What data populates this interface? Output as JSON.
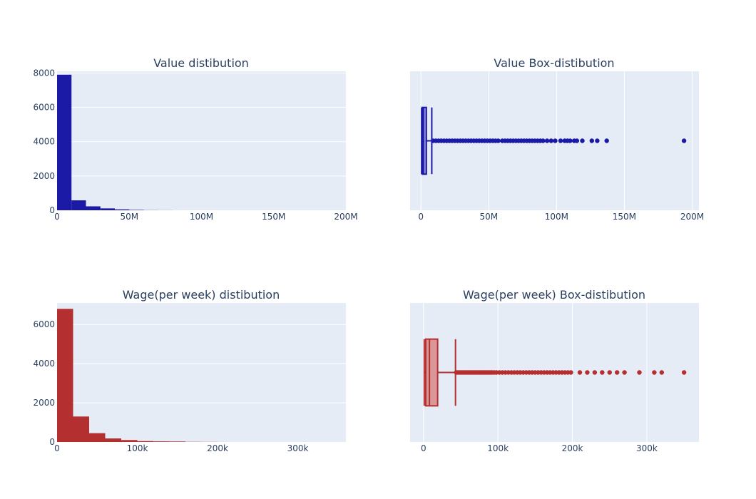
{
  "chart_data": [
    {
      "type": "bar",
      "title": "Value distibution",
      "color": "#1a1aa6",
      "xlim": [
        0,
        200
      ],
      "ylim": [
        0,
        8100
      ],
      "x_ticks": [
        0,
        50,
        100,
        150,
        200
      ],
      "x_tick_labels": [
        "0",
        "50M",
        "100M",
        "150M",
        "200M"
      ],
      "y_ticks": [
        0,
        2000,
        4000,
        6000,
        8000
      ],
      "y_tick_labels": [
        "0",
        "2000",
        "4000",
        "6000",
        "8000"
      ],
      "bins": [
        {
          "x0": 0,
          "x1": 10,
          "value": 7900
        },
        {
          "x0": 10,
          "x1": 20,
          "value": 580
        },
        {
          "x0": 20,
          "x1": 30,
          "value": 230
        },
        {
          "x0": 30,
          "x1": 40,
          "value": 110
        },
        {
          "x0": 40,
          "x1": 50,
          "value": 55
        },
        {
          "x0": 50,
          "x1": 60,
          "value": 25
        },
        {
          "x0": 60,
          "x1": 70,
          "value": 8
        },
        {
          "x0": 70,
          "x1": 80,
          "value": 4
        }
      ]
    },
    {
      "type": "box",
      "title": "Value Box-distibution",
      "color": "#1a1aa6",
      "xlim": [
        -8,
        205
      ],
      "x_ticks": [
        0,
        50,
        100,
        150,
        200
      ],
      "x_tick_labels": [
        "0",
        "50M",
        "100M",
        "150M",
        "200M"
      ],
      "min": 0.5,
      "q1": 1.0,
      "median": 1.8,
      "q3": 4.0,
      "upper_fence": 8.0,
      "outliers": [
        9,
        11,
        13,
        15,
        17,
        19,
        21,
        23,
        25,
        27,
        29,
        31,
        33,
        35,
        37,
        39,
        41,
        43,
        45,
        47,
        49,
        51,
        53,
        55,
        57,
        60,
        62,
        64,
        66,
        68,
        70,
        72,
        74,
        76,
        78,
        80,
        82,
        84,
        86,
        88,
        90,
        93,
        96,
        99,
        103,
        106,
        108,
        110,
        113,
        115,
        119,
        126,
        130,
        137,
        194
      ]
    },
    {
      "type": "bar",
      "title": "Wage(per week) distibution",
      "color": "#b42f2f",
      "xlim": [
        0,
        360
      ],
      "ylim": [
        0,
        7100
      ],
      "x_ticks": [
        0,
        100,
        200,
        300
      ],
      "x_tick_labels": [
        "0",
        "100k",
        "200k",
        "300k"
      ],
      "y_ticks": [
        0,
        2000,
        4000,
        6000
      ],
      "y_tick_labels": [
        "0",
        "2000",
        "4000",
        "6000"
      ],
      "bins": [
        {
          "x0": 0,
          "x1": 20,
          "value": 6800
        },
        {
          "x0": 20,
          "x1": 40,
          "value": 1300
        },
        {
          "x0": 40,
          "x1": 60,
          "value": 450
        },
        {
          "x0": 60,
          "x1": 80,
          "value": 180
        },
        {
          "x0": 80,
          "x1": 100,
          "value": 100
        },
        {
          "x0": 100,
          "x1": 120,
          "value": 45
        },
        {
          "x0": 120,
          "x1": 140,
          "value": 30
        },
        {
          "x0": 140,
          "x1": 160,
          "value": 25
        },
        {
          "x0": 160,
          "x1": 180,
          "value": 8
        },
        {
          "x0": 180,
          "x1": 200,
          "value": 5
        }
      ]
    },
    {
      "type": "box",
      "title": "Wage(per week) Box-distibution",
      "color": "#b42f2f",
      "xlim": [
        -18,
        370
      ],
      "x_ticks": [
        0,
        100,
        200,
        300
      ],
      "x_tick_labels": [
        "0",
        "100k",
        "200k",
        "300k"
      ],
      "min": 1,
      "q1": 3,
      "median": 8,
      "q3": 19,
      "upper_fence": 43,
      "outliers": [
        44,
        46,
        48,
        50,
        52,
        54,
        56,
        58,
        60,
        62,
        64,
        66,
        68,
        70,
        72,
        74,
        76,
        78,
        80,
        82,
        84,
        86,
        88,
        90,
        92,
        95,
        98,
        102,
        106,
        110,
        114,
        118,
        122,
        126,
        130,
        134,
        138,
        142,
        146,
        150,
        154,
        158,
        162,
        166,
        170,
        174,
        178,
        182,
        186,
        190,
        194,
        198,
        210,
        220,
        230,
        240,
        250,
        260,
        270,
        290,
        310,
        320,
        350
      ]
    }
  ]
}
